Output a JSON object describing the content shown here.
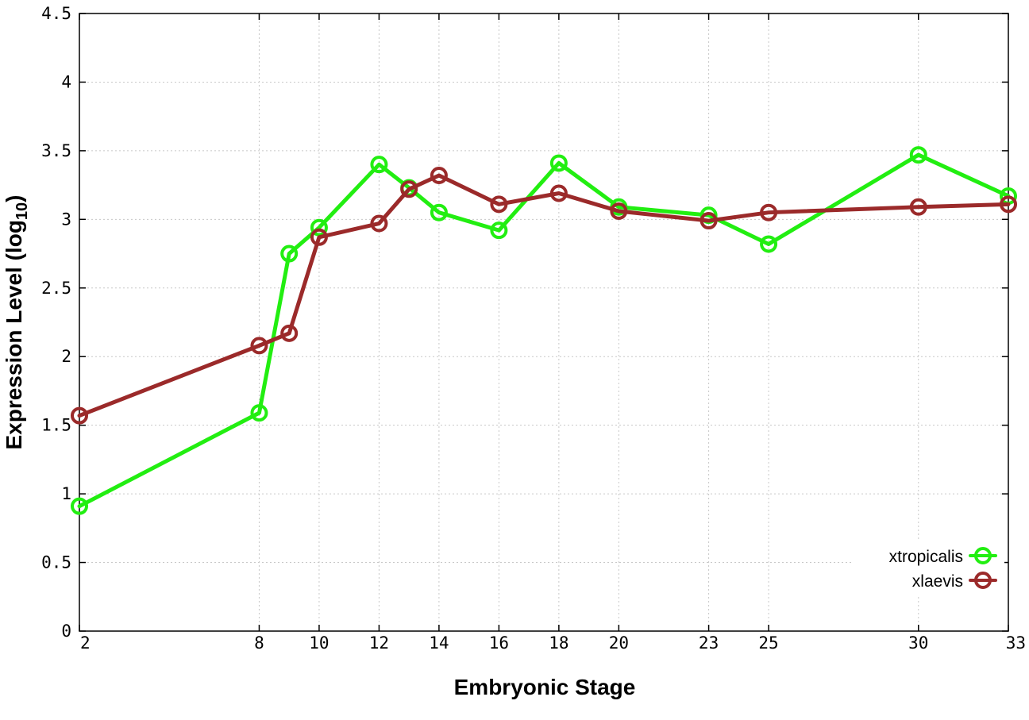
{
  "chart_data": {
    "type": "line",
    "title": "",
    "xlabel": "Embryonic Stage",
    "ylabel_main": "Expression Level (log",
    "ylabel_sub": "10",
    "ylabel_close": ")",
    "x": [
      2,
      8,
      9,
      10,
      12,
      13,
      14,
      16,
      18,
      20,
      23,
      25,
      30,
      33
    ],
    "xticks": [
      2,
      8,
      10,
      12,
      14,
      16,
      18,
      20,
      23,
      25,
      30,
      33
    ],
    "xtick_labels": [
      "2",
      "8",
      "10",
      "12",
      "14",
      "16",
      "18",
      "20",
      "23",
      "25",
      "30",
      "33"
    ],
    "yticks": [
      0,
      0.5,
      1,
      1.5,
      2,
      2.5,
      3,
      3.5,
      4,
      4.5
    ],
    "ytick_labels": [
      "0",
      "0.5",
      "1",
      "1.5",
      "2",
      "2.5",
      "3",
      "3.5",
      "4",
      "4.5"
    ],
    "xlim": [
      2,
      33
    ],
    "ylim": [
      0,
      4.5
    ],
    "grid": true,
    "legend_position": "bottom-right",
    "series": [
      {
        "name": "xtropicalis",
        "color": "#22ee11",
        "values": [
          0.91,
          1.59,
          2.75,
          2.94,
          3.4,
          3.23,
          3.05,
          2.92,
          3.41,
          3.09,
          3.03,
          2.82,
          3.47,
          3.17
        ]
      },
      {
        "name": "xlaevis",
        "color": "#9b2a2a",
        "values": [
          1.57,
          2.08,
          2.17,
          2.87,
          2.97,
          3.22,
          3.32,
          3.11,
          3.19,
          3.06,
          2.99,
          3.05,
          3.09,
          3.11
        ]
      }
    ]
  }
}
